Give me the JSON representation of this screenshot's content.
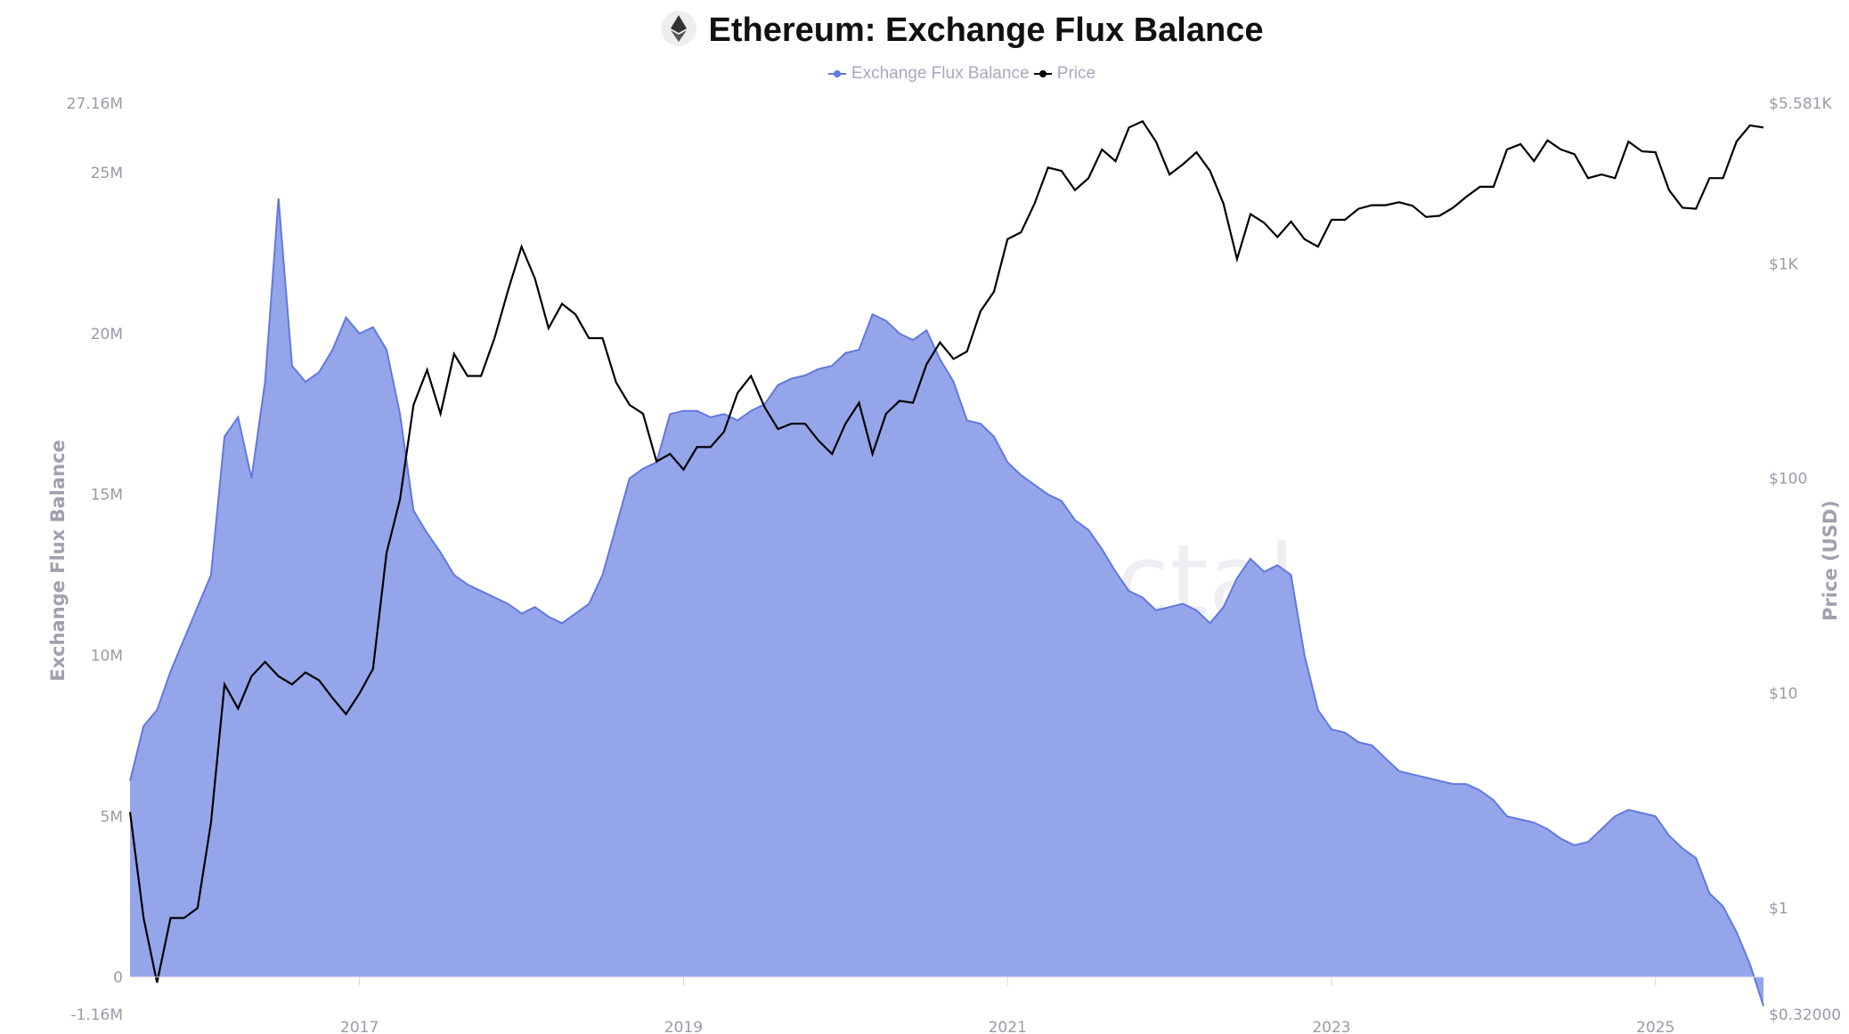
{
  "header": {
    "title": "Ethereum: Exchange Flux Balance",
    "icon": "ethereum-logo-icon"
  },
  "watermark": "Alphractal",
  "colors": {
    "flux_line": "#6278e0",
    "flux_fill": "#95a5e9",
    "price": "#000000",
    "tick_text": "#9a9aa8"
  },
  "chart_data": {
    "type": "area+line",
    "title": "Ethereum: Exchange Flux Balance",
    "legend": {
      "placement": "top-center",
      "entries": [
        "Exchange Flux Balance",
        "Price"
      ]
    },
    "grid": false,
    "x": {
      "type": "date",
      "tick_labels": [
        "2017",
        "2019",
        "2021",
        "2023",
        "2025"
      ],
      "range": [
        "2015-08",
        "2025-09"
      ]
    },
    "y_left": {
      "label": "Exchange Flux Balance",
      "range": [
        -1160000,
        27160000
      ],
      "tick_labels": [
        "27.16M",
        "25M",
        "20M",
        "15M",
        "10M",
        "5M",
        "0",
        "-1.16M"
      ],
      "tick_values": [
        27160000,
        25000000,
        20000000,
        15000000,
        10000000,
        5000000,
        0,
        -1160000
      ]
    },
    "y_right": {
      "label": "Price (USD)",
      "scale": "log",
      "range": [
        0.32,
        5581
      ],
      "tick_labels": [
        "$5.581K",
        "$1K",
        "$100",
        "$10",
        "$1",
        "$0.32000"
      ],
      "tick_values": [
        5581,
        1000,
        100,
        10,
        1,
        0.32
      ]
    },
    "dates": [
      "2015-08",
      "2015-09",
      "2015-10",
      "2015-11",
      "2015-12",
      "2016-01",
      "2016-02",
      "2016-03",
      "2016-04",
      "2016-05",
      "2016-06",
      "2016-07",
      "2016-08",
      "2016-09",
      "2016-10",
      "2016-11",
      "2016-12",
      "2017-01",
      "2017-02",
      "2017-03",
      "2017-04",
      "2017-05",
      "2017-06",
      "2017-07",
      "2017-08",
      "2017-09",
      "2017-10",
      "2017-11",
      "2017-12",
      "2018-01",
      "2018-02",
      "2018-03",
      "2018-04",
      "2018-05",
      "2018-06",
      "2018-07",
      "2018-08",
      "2018-09",
      "2018-10",
      "2018-11",
      "2018-12",
      "2019-01",
      "2019-02",
      "2019-03",
      "2019-04",
      "2019-05",
      "2019-06",
      "2019-07",
      "2019-08",
      "2019-09",
      "2019-10",
      "2019-11",
      "2019-12",
      "2020-01",
      "2020-02",
      "2020-03",
      "2020-04",
      "2020-05",
      "2020-06",
      "2020-07",
      "2020-08",
      "2020-09",
      "2020-10",
      "2020-11",
      "2020-12",
      "2021-01",
      "2021-02",
      "2021-03",
      "2021-04",
      "2021-05",
      "2021-06",
      "2021-07",
      "2021-08",
      "2021-09",
      "2021-10",
      "2021-11",
      "2021-12",
      "2022-01",
      "2022-02",
      "2022-03",
      "2022-04",
      "2022-05",
      "2022-06",
      "2022-07",
      "2022-08",
      "2022-09",
      "2022-10",
      "2022-11",
      "2022-12",
      "2023-01",
      "2023-02",
      "2023-03",
      "2023-04",
      "2023-05",
      "2023-06",
      "2023-07",
      "2023-08",
      "2023-09",
      "2023-10",
      "2023-11",
      "2023-12",
      "2024-01",
      "2024-02",
      "2024-03",
      "2024-04",
      "2024-05",
      "2024-06",
      "2024-07",
      "2024-08",
      "2024-09",
      "2024-10",
      "2024-11",
      "2024-12",
      "2025-01",
      "2025-02",
      "2025-03",
      "2025-04",
      "2025-05",
      "2025-06",
      "2025-07",
      "2025-08",
      "2025-09"
    ],
    "series": [
      {
        "name": "Exchange Flux Balance",
        "axis": "left",
        "unit": "M",
        "values": [
          6.1,
          7.8,
          8.3,
          9.5,
          10.5,
          11.5,
          12.5,
          16.8,
          17.4,
          15.5,
          18.5,
          24.2,
          19.0,
          18.5,
          18.8,
          19.5,
          20.5,
          20.0,
          20.2,
          19.5,
          17.5,
          14.5,
          13.8,
          13.2,
          12.5,
          12.2,
          12.0,
          11.8,
          11.6,
          11.3,
          11.5,
          11.2,
          11.0,
          11.3,
          11.6,
          12.5,
          14.0,
          15.5,
          15.8,
          16.0,
          17.5,
          17.6,
          17.6,
          17.4,
          17.5,
          17.3,
          17.6,
          17.8,
          18.4,
          18.6,
          18.7,
          18.9,
          19.0,
          19.4,
          19.5,
          20.6,
          20.4,
          20.0,
          19.8,
          20.1,
          19.2,
          18.5,
          17.3,
          17.2,
          16.8,
          16.0,
          15.6,
          15.3,
          15.0,
          14.8,
          14.2,
          13.9,
          13.3,
          12.6,
          12.0,
          11.8,
          11.4,
          11.5,
          11.6,
          11.4,
          11.0,
          11.5,
          12.4,
          13.0,
          12.6,
          12.8,
          12.5,
          10.0,
          8.3,
          7.7,
          7.6,
          7.3,
          7.2,
          6.8,
          6.4,
          6.3,
          6.2,
          6.1,
          6.0,
          6.0,
          5.8,
          5.5,
          5.0,
          4.9,
          4.8,
          4.6,
          4.3,
          4.1,
          4.2,
          4.6,
          5.0,
          5.2,
          5.1,
          5.0,
          4.4,
          4.0,
          3.7,
          2.6,
          2.2,
          1.4,
          0.4,
          -0.9
        ]
      },
      {
        "name": "Price",
        "axis": "right",
        "unit": "USD",
        "values": [
          2.8,
          0.9,
          0.45,
          0.9,
          0.9,
          1.0,
          2.5,
          11,
          8.5,
          12,
          14,
          12,
          11,
          12.5,
          11.5,
          9.5,
          8,
          10,
          13,
          45,
          80,
          220,
          320,
          200,
          380,
          300,
          300,
          450,
          750,
          1200,
          850,
          500,
          650,
          580,
          450,
          450,
          280,
          220,
          200,
          120,
          130,
          110,
          140,
          140,
          165,
          250,
          300,
          215,
          170,
          180,
          180,
          150,
          130,
          180,
          225,
          130,
          200,
          230,
          225,
          340,
          430,
          360,
          390,
          600,
          740,
          1300,
          1400,
          1900,
          2800,
          2700,
          2200,
          2500,
          3400,
          3000,
          4300,
          4600,
          3700,
          2600,
          2900,
          3300,
          2700,
          1900,
          1050,
          1700,
          1550,
          1330,
          1570,
          1300,
          1200,
          1600,
          1600,
          1800,
          1870,
          1870,
          1930,
          1860,
          1650,
          1670,
          1820,
          2050,
          2280,
          2280,
          3400,
          3600,
          3000,
          3750,
          3400,
          3230,
          2500,
          2600,
          2500,
          3700,
          3330,
          3300,
          2200,
          1820,
          1800,
          2500,
          2500,
          3700,
          4400,
          4300
        ]
      }
    ]
  }
}
